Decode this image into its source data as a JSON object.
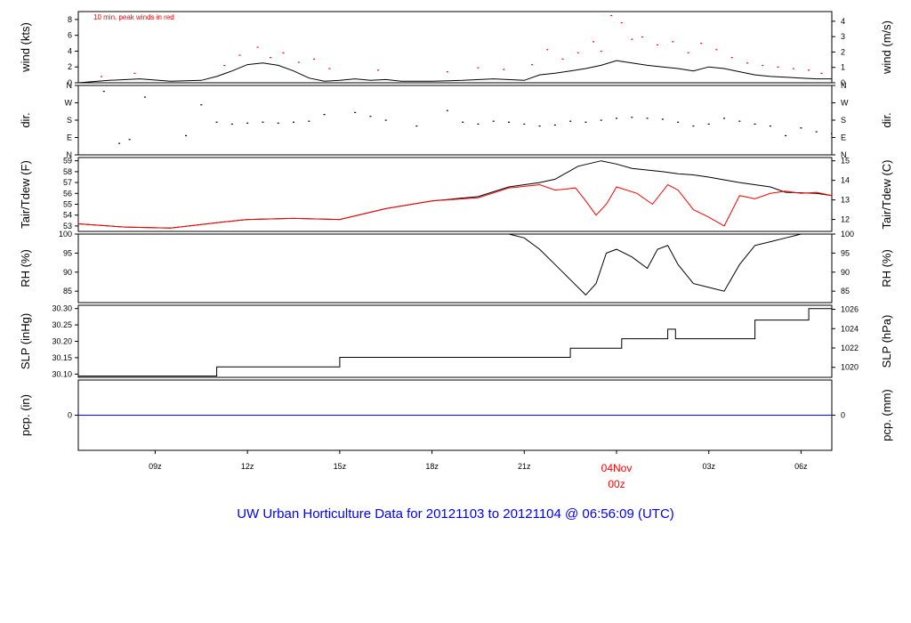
{
  "footer_title": "UW Urban Horticulture Data for 20121103  to  20121104 @ 06:56:09  (UTC)",
  "colors": {
    "primary": "#000000",
    "peak": "#ff0000",
    "precip": "#0000ff",
    "title": "#0000ff",
    "date": "#ff0000"
  },
  "chart_data": {
    "type": "line",
    "x_axis": {
      "unit": "UTC",
      "range": [
        "2012-11-03 06:30",
        "2012-11-04 07:00"
      ],
      "ticks": [
        {
          "label": "09z",
          "time": "2012-11-03 09:00"
        },
        {
          "label": "12z",
          "time": "2012-11-03 12:00"
        },
        {
          "label": "15z",
          "time": "2012-11-03 15:00"
        },
        {
          "label": "18z",
          "time": "2012-11-03 18:00"
        },
        {
          "label": "21z",
          "time": "2012-11-03 21:00"
        },
        {
          "label": "03z",
          "time": "2012-11-04 03:00"
        },
        {
          "label": "06z",
          "time": "2012-11-04 06:00"
        }
      ],
      "date_marker": {
        "date_label": "04Nov",
        "hour_label": "00z",
        "time": "2012-11-04 00:00"
      }
    },
    "panels": [
      {
        "id": "wind",
        "left_label": "wind (kts)",
        "right_label": "wind (m/s)",
        "left_ylim": [
          0,
          9
        ],
        "left_ticks": [
          "0",
          "2",
          "4",
          "6",
          "8"
        ],
        "right_ticks": [
          "0",
          "1",
          "2",
          "3",
          "4"
        ],
        "right_tick_values": [
          0,
          1,
          2,
          3,
          4
        ],
        "right_factor": 0.5144,
        "annotation": "10 min. peak winds in red",
        "series": [
          {
            "kind": "line",
            "color": "#000000",
            "x": [
              "2012-11-03 06:30",
              "2012-11-03 07:30",
              "2012-11-03 08:30",
              "2012-11-03 09:30",
              "2012-11-03 10:30",
              "2012-11-03 11:00",
              "2012-11-03 11:30",
              "2012-11-03 12:00",
              "2012-11-03 12:30",
              "2012-11-03 13:00",
              "2012-11-03 13:30",
              "2012-11-03 14:00",
              "2012-11-03 14:30",
              "2012-11-03 15:00",
              "2012-11-03 15:30",
              "2012-11-03 16:00",
              "2012-11-03 16:30",
              "2012-11-03 17:00",
              "2012-11-03 18:00",
              "2012-11-03 19:00",
              "2012-11-03 20:00",
              "2012-11-03 21:00",
              "2012-11-03 21:30",
              "2012-11-03 22:00",
              "2012-11-03 22:30",
              "2012-11-03 23:00",
              "2012-11-03 23:30",
              "2012-11-04 00:00",
              "2012-11-04 00:30",
              "2012-11-04 01:00",
              "2012-11-04 01:30",
              "2012-11-04 02:00",
              "2012-11-04 02:30",
              "2012-11-04 03:00",
              "2012-11-04 03:30",
              "2012-11-04 04:00",
              "2012-11-04 04:30",
              "2012-11-04 05:00",
              "2012-11-04 05:30",
              "2012-11-04 06:00",
              "2012-11-04 06:30",
              "2012-11-04 07:00"
            ],
            "y": [
              0,
              0.3,
              0.5,
              0.2,
              0.3,
              0.8,
              1.5,
              2.3,
              2.5,
              2.2,
              1.5,
              0.6,
              0.2,
              0.3,
              0.5,
              0.3,
              0.4,
              0.2,
              0.2,
              0.3,
              0.5,
              0.3,
              1.0,
              1.2,
              1.5,
              1.8,
              2.2,
              2.8,
              2.5,
              2.2,
              2.0,
              1.8,
              1.5,
              2.0,
              1.8,
              1.4,
              1.0,
              0.8,
              0.7,
              0.6,
              0.5,
              0.5
            ]
          },
          {
            "kind": "points",
            "color": "#ff0000",
            "x": [
              "2012-11-03 07:15",
              "2012-11-03 08:20",
              "2012-11-03 11:15",
              "2012-11-03 11:45",
              "2012-11-03 12:20",
              "2012-11-03 12:45",
              "2012-11-03 13:10",
              "2012-11-03 13:40",
              "2012-11-03 14:10",
              "2012-11-03 14:40",
              "2012-11-03 16:15",
              "2012-11-03 18:30",
              "2012-11-03 19:30",
              "2012-11-03 20:20",
              "2012-11-03 21:15",
              "2012-11-03 21:45",
              "2012-11-03 22:15",
              "2012-11-03 22:45",
              "2012-11-03 23:15",
              "2012-11-03 23:30",
              "2012-11-03 23:50",
              "2012-11-04 00:10",
              "2012-11-04 00:30",
              "2012-11-04 00:50",
              "2012-11-04 01:20",
              "2012-11-04 01:50",
              "2012-11-04 02:20",
              "2012-11-04 02:45",
              "2012-11-04 03:15",
              "2012-11-04 03:45",
              "2012-11-04 04:15",
              "2012-11-04 04:45",
              "2012-11-04 05:15",
              "2012-11-04 05:45",
              "2012-11-04 06:15",
              "2012-11-04 06:40"
            ],
            "y": [
              0.8,
              1.2,
              2.2,
              3.5,
              4.5,
              3.2,
              3.8,
              2.6,
              3.0,
              1.8,
              1.6,
              1.4,
              1.9,
              1.7,
              2.3,
              4.2,
              3.0,
              3.8,
              5.2,
              4.0,
              8.5,
              7.6,
              5.5,
              5.8,
              4.8,
              5.2,
              3.8,
              5.0,
              4.2,
              3.2,
              2.5,
              2.2,
              2.0,
              1.8,
              1.6,
              1.2
            ]
          }
        ]
      },
      {
        "id": "dir",
        "left_label": "dir.",
        "right_label": "dir.",
        "left_ylim": [
          0,
          360
        ],
        "left_ticks": [
          "N",
          "E",
          "S",
          "W",
          "N"
        ],
        "right_ticks": [
          "N",
          "E",
          "S",
          "W",
          "N"
        ],
        "series": [
          {
            "kind": "points",
            "color": "#000000",
            "x": [
              "2012-11-03 07:20",
              "2012-11-03 07:50",
              "2012-11-03 08:10",
              "2012-11-03 08:40",
              "2012-11-03 10:00",
              "2012-11-03 10:30",
              "2012-11-03 11:00",
              "2012-11-03 11:30",
              "2012-11-03 12:00",
              "2012-11-03 12:30",
              "2012-11-03 13:00",
              "2012-11-03 13:30",
              "2012-11-03 14:00",
              "2012-11-03 14:30",
              "2012-11-03 15:30",
              "2012-11-03 16:00",
              "2012-11-03 16:30",
              "2012-11-03 17:30",
              "2012-11-03 18:30",
              "2012-11-03 19:00",
              "2012-11-03 19:30",
              "2012-11-03 20:00",
              "2012-11-03 20:30",
              "2012-11-03 21:00",
              "2012-11-03 21:30",
              "2012-11-03 22:00",
              "2012-11-03 22:30",
              "2012-11-03 23:00",
              "2012-11-03 23:30",
              "2012-11-04 00:00",
              "2012-11-04 00:30",
              "2012-11-04 01:00",
              "2012-11-04 01:30",
              "2012-11-04 02:00",
              "2012-11-04 02:30",
              "2012-11-04 03:00",
              "2012-11-04 03:30",
              "2012-11-04 04:00",
              "2012-11-04 04:30",
              "2012-11-04 05:00",
              "2012-11-04 05:30",
              "2012-11-04 06:00",
              "2012-11-04 06:30",
              "2012-11-04 07:00"
            ],
            "y": [
              330,
              60,
              80,
              300,
              100,
              260,
              170,
              160,
              165,
              170,
              165,
              170,
              175,
              210,
              220,
              200,
              180,
              150,
              230,
              170,
              160,
              175,
              170,
              160,
              150,
              155,
              175,
              170,
              180,
              190,
              195,
              190,
              185,
              170,
              150,
              160,
              190,
              175,
              160,
              150,
              100,
              140,
              120,
              110
            ]
          }
        ]
      },
      {
        "id": "temp",
        "left_label": "Tair/Tdew (F)",
        "right_label": "Tair/Tdew (C)",
        "left_ylim": [
          52.5,
          59.3
        ],
        "left_ticks": [
          "53",
          "54",
          "55",
          "56",
          "57",
          "58",
          "59"
        ],
        "right_ticks": [
          "12",
          "13",
          "14",
          "15"
        ],
        "right_tick_values": [
          12,
          13,
          14,
          15
        ],
        "series": [
          {
            "name": "",
            "kind": "line",
            "color": "#000000",
            "x": [
              "2012-11-03 06:30",
              "2012-11-03 08:00",
              "2012-11-03 09:30",
              "2012-11-03 11:00",
              "2012-11-03 12:00",
              "2012-11-03 13:30",
              "2012-11-03 15:00",
              "2012-11-03 16:30",
              "2012-11-03 18:00",
              "2012-11-03 19:30",
              "2012-11-03 20:30",
              "2012-11-03 21:30",
              "2012-11-03 22:00",
              "2012-11-03 22:45",
              "2012-11-03 23:30",
              "2012-11-04 00:00",
              "2012-11-04 00:30",
              "2012-11-04 01:30",
              "2012-11-04 02:00",
              "2012-11-04 02:30",
              "2012-11-04 03:00",
              "2012-11-04 04:00",
              "2012-11-04 05:00",
              "2012-11-04 05:30",
              "2012-11-04 06:30",
              "2012-11-04 07:00"
            ],
            "y": [
              53.2,
              52.9,
              52.8,
              53.3,
              53.6,
              53.7,
              53.6,
              54.6,
              55.3,
              55.7,
              56.6,
              57.0,
              57.3,
              58.5,
              59.0,
              58.7,
              58.3,
              58.0,
              57.8,
              57.7,
              57.5,
              57.0,
              56.6,
              56.1,
              56.0,
              55.8
            ]
          },
          {
            "name": "",
            "kind": "line",
            "color": "#ff0000",
            "x": [
              "2012-11-03 06:30",
              "2012-11-03 08:00",
              "2012-11-03 09:30",
              "2012-11-03 11:00",
              "2012-11-03 12:00",
              "2012-11-03 13:30",
              "2012-11-03 15:00",
              "2012-11-03 16:30",
              "2012-11-03 18:00",
              "2012-11-03 19:30",
              "2012-11-03 20:30",
              "2012-11-03 21:30",
              "2012-11-03 22:00",
              "2012-11-03 22:40",
              "2012-11-03 23:00",
              "2012-11-03 23:20",
              "2012-11-03 23:40",
              "2012-11-04 00:00",
              "2012-11-04 00:40",
              "2012-11-04 01:10",
              "2012-11-04 01:40",
              "2012-11-04 02:00",
              "2012-11-04 02:30",
              "2012-11-04 03:00",
              "2012-11-04 03:30",
              "2012-11-04 04:00",
              "2012-11-04 04:30",
              "2012-11-04 05:00",
              "2012-11-04 05:30",
              "2012-11-04 06:00",
              "2012-11-04 06:30",
              "2012-11-04 07:00"
            ],
            "y": [
              53.2,
              52.9,
              52.8,
              53.3,
              53.6,
              53.7,
              53.6,
              54.6,
              55.3,
              55.6,
              56.5,
              56.8,
              56.3,
              56.5,
              55.3,
              54.0,
              55.0,
              56.6,
              56.0,
              55.0,
              56.8,
              56.3,
              54.5,
              53.8,
              53.0,
              55.8,
              55.5,
              56.0,
              56.2,
              56.0,
              56.1,
              55.8
            ]
          }
        ]
      },
      {
        "id": "rh",
        "left_label": "RH (%)",
        "right_label": "RH (%)",
        "left_ylim": [
          82,
          100
        ],
        "left_ticks": [
          "85",
          "90",
          "95",
          "100"
        ],
        "right_ticks": [
          "85",
          "90",
          "95",
          "100"
        ],
        "right_tick_values": [
          85,
          90,
          95,
          100
        ],
        "series": [
          {
            "kind": "line",
            "color": "#000000",
            "x": [
              "2012-11-03 06:30",
              "2012-11-03 20:30",
              "2012-11-03 21:00",
              "2012-11-03 21:30",
              "2012-11-03 22:00",
              "2012-11-03 22:30",
              "2012-11-03 23:00",
              "2012-11-03 23:20",
              "2012-11-03 23:40",
              "2012-11-04 00:00",
              "2012-11-04 00:30",
              "2012-11-04 01:00",
              "2012-11-04 01:20",
              "2012-11-04 01:40",
              "2012-11-04 02:00",
              "2012-11-04 02:30",
              "2012-11-04 03:00",
              "2012-11-04 03:30",
              "2012-11-04 04:00",
              "2012-11-04 04:30",
              "2012-11-04 05:00",
              "2012-11-04 05:30",
              "2012-11-04 06:00",
              "2012-11-04 07:00"
            ],
            "y": [
              100,
              100,
              99,
              96,
              92,
              88,
              84,
              87,
              95,
              96,
              94,
              91,
              96,
              97,
              92,
              87,
              86,
              85,
              92,
              97,
              98,
              99,
              100,
              100
            ]
          }
        ]
      },
      {
        "id": "slp",
        "left_label": "SLP (inHg)",
        "right_label": "SLP (hPa)",
        "left_ylim": [
          30.09,
          30.31
        ],
        "left_ticks": [
          "30.10",
          "30.15",
          "30.20",
          "30.25",
          "30.30"
        ],
        "right_ticks": [
          "1020",
          "1022",
          "1024",
          "1026"
        ],
        "right_tick_values": [
          1020,
          1022,
          1024,
          1026
        ],
        "series": [
          {
            "kind": "line",
            "color": "#000000",
            "x": [
              "2012-11-03 06:30",
              "2012-11-03 11:00",
              "2012-11-03 11:00",
              "2012-11-03 15:00",
              "2012-11-03 15:00",
              "2012-11-03 22:30",
              "2012-11-03 22:30",
              "2012-11-04 00:10",
              "2012-11-04 00:10",
              "2012-11-04 01:40",
              "2012-11-04 01:40",
              "2012-11-04 01:55",
              "2012-11-04 01:55",
              "2012-11-04 04:30",
              "2012-11-04 04:30",
              "2012-11-04 06:15",
              "2012-11-04 06:15",
              "2012-11-04 07:00"
            ],
            "y": [
              30.094,
              30.094,
              30.122,
              30.122,
              30.151,
              30.151,
              30.179,
              30.179,
              30.208,
              30.208,
              30.237,
              30.237,
              30.208,
              30.208,
              30.265,
              30.265,
              30.3,
              30.3
            ]
          }
        ]
      },
      {
        "id": "pcp",
        "left_label": "pcp. (in)",
        "right_label": "pcp. (mm)",
        "left_ylim": [
          -1,
          1
        ],
        "left_ticks": [
          "0"
        ],
        "right_ticks": [
          "0"
        ],
        "right_tick_values": [
          0
        ],
        "series": [
          {
            "kind": "line",
            "color": "#0000ff",
            "x": [
              "2012-11-03 06:30",
              "2012-11-04 07:00"
            ],
            "y": [
              0,
              0
            ]
          }
        ]
      }
    ]
  }
}
